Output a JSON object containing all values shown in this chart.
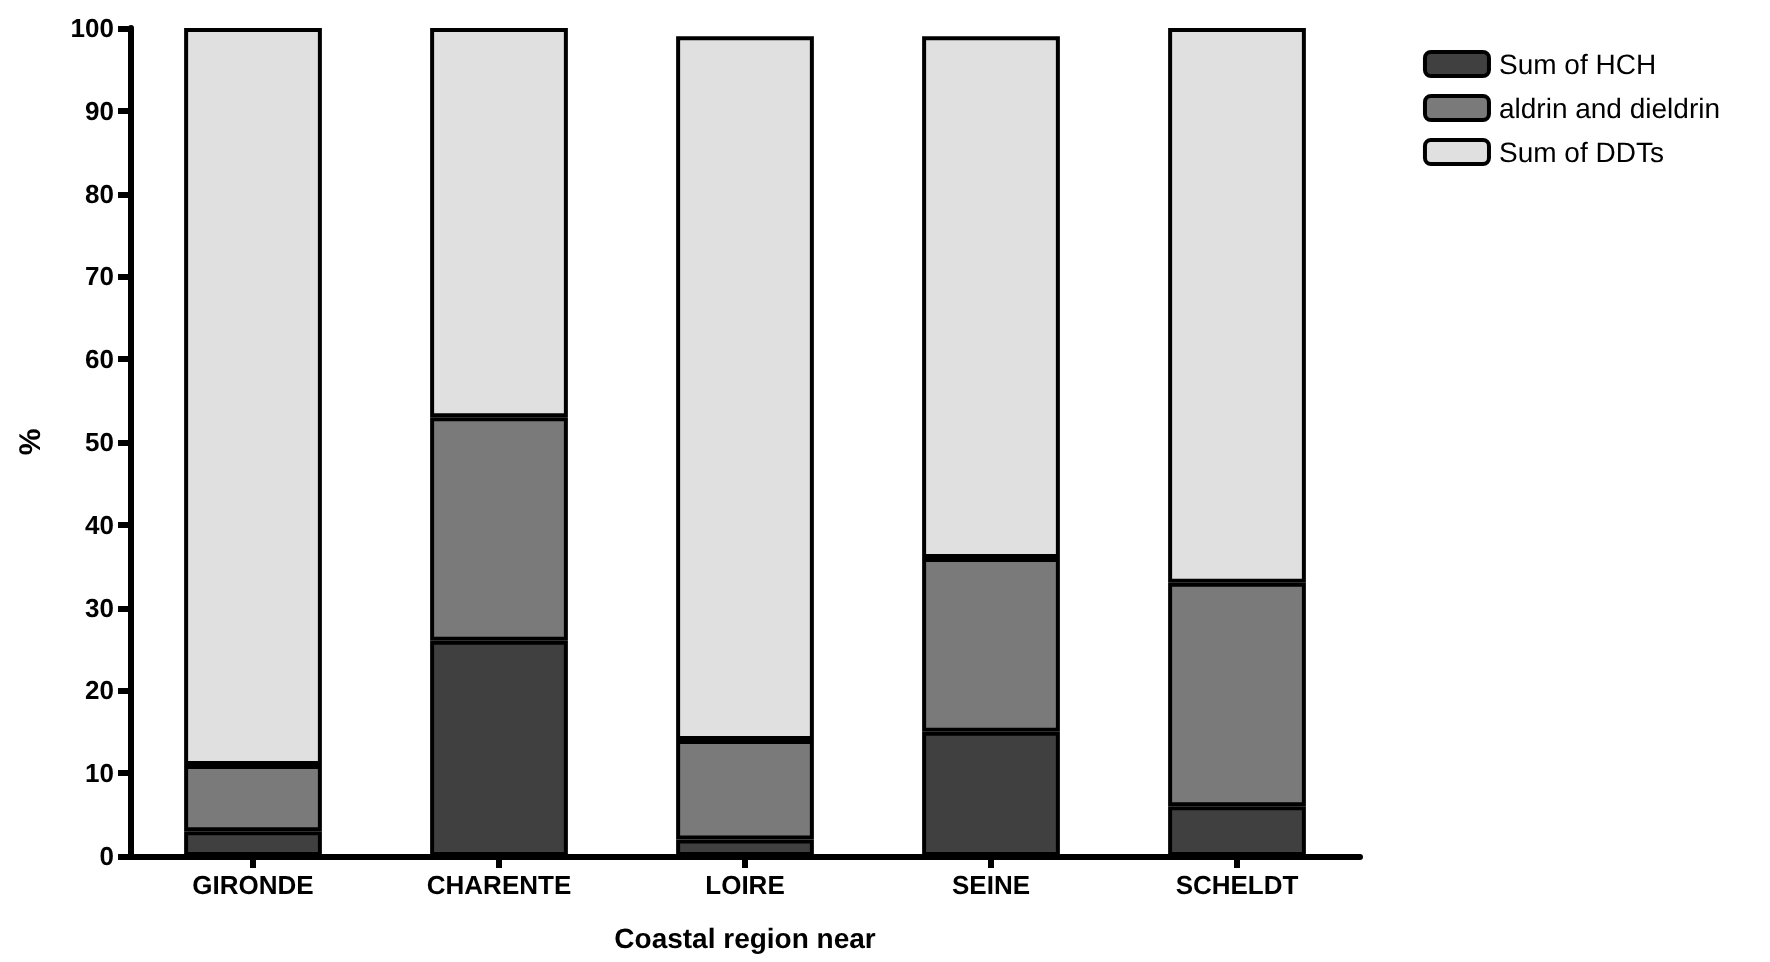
{
  "chart_data": {
    "type": "bar",
    "stacked": true,
    "xlabel": "Coastal region near",
    "ylabel": "%",
    "categories": [
      "GIRONDE",
      "CHARENTE",
      "LOIRE",
      "SEINE",
      "SCHELDT"
    ],
    "series": [
      {
        "name": "Sum of HCH",
        "color": "#404040",
        "values": [
          3,
          26,
          2,
          15,
          6
        ]
      },
      {
        "name": "aldrin and dieldrin",
        "color": "#7a7a7a",
        "values": [
          8,
          27,
          12,
          21,
          27
        ]
      },
      {
        "name": "Sum of DDTs",
        "color": "#e0e0e0",
        "values": [
          89,
          47,
          85,
          63,
          67
        ]
      }
    ],
    "ylim": [
      0,
      100
    ],
    "yticks": [
      0,
      10,
      20,
      30,
      40,
      50,
      60,
      70,
      80,
      90,
      100
    ],
    "grid": false,
    "legend": "top right"
  }
}
